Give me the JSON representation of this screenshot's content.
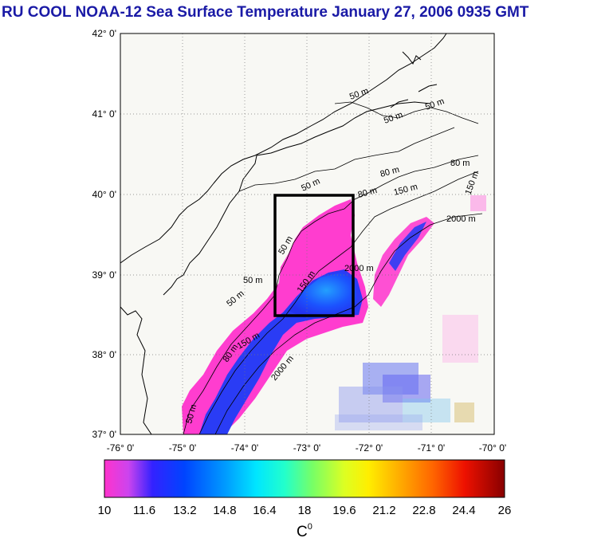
{
  "title": "RU COOL  NOAA-12 Sea Surface Temperature January 27, 2006 0935 GMT",
  "map": {
    "lat_labels": [
      "42° 0'",
      "41° 0'",
      "40° 0'",
      "39° 0'",
      "38° 0'",
      "37° 0'"
    ],
    "lon_labels": [
      "-76° 0'",
      "-75° 0'",
      "-74° 0'",
      "-73° 0'",
      "-72° 0'",
      "-71° 0'",
      "-70° 0'"
    ],
    "lat_range": [
      37,
      42
    ],
    "lon_range": [
      -76,
      -70
    ],
    "study_box": {
      "lon_range": [
        -73.4,
        -72.4
      ],
      "lat_range": [
        38.5,
        40.0
      ]
    },
    "contour_labels": [
      "50 m",
      "50 m",
      "50 m",
      "80 m",
      "80 m",
      "150 m",
      "150 m",
      "2000 m",
      "50 m",
      "80 m",
      "150 m",
      "2000 m",
      "50 m",
      "50 m",
      "80 m",
      "150 m",
      "2000 m",
      "50 m",
      "50 m"
    ]
  },
  "colorbar": {
    "ticks": [
      "10",
      "11.6",
      "13.2",
      "14.8",
      "16.4",
      "18",
      "19.6",
      "21.2",
      "22.8",
      "24.4",
      "26"
    ],
    "range": [
      10,
      26
    ],
    "unit_label": "C",
    "unit_sup": "0"
  },
  "colors": {
    "title": "#1a1aa6",
    "land": "#f8f8f4",
    "frame": "#000000",
    "warm_patch": "#ff33cc",
    "cold_patch": "#1e3cff"
  }
}
